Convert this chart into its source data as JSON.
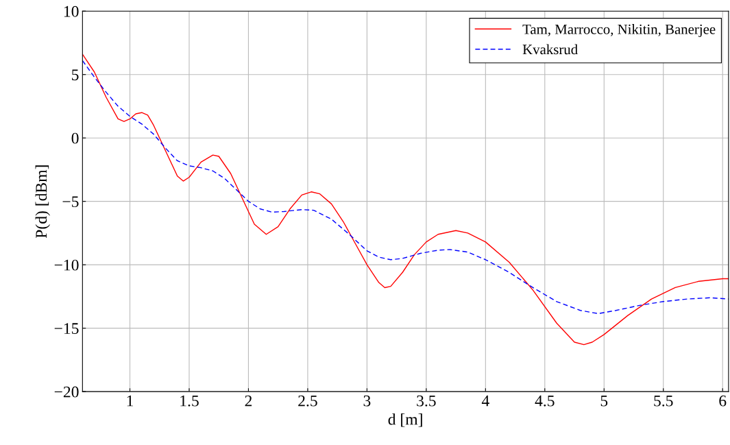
{
  "chart_data": {
    "type": "line",
    "xlabel": "d [m]",
    "ylabel": "P(d) [dBm]",
    "xlim": [
      0.6,
      6.05
    ],
    "xticks": [
      1,
      1.5,
      2,
      2.5,
      3,
      3.5,
      4,
      4.5,
      5,
      5.5,
      6
    ],
    "ylim": [
      -20,
      10
    ],
    "yticks": [
      {
        "value": -20,
        "label": "−20"
      },
      {
        "value": -15,
        "label": "−15"
      },
      {
        "value": -10,
        "label": "−10"
      },
      {
        "value": -5,
        "label": "−5"
      },
      0,
      5,
      10
    ],
    "grid": true,
    "legend": "top right",
    "marker": "none",
    "series": [
      {
        "name": "Tam, Marrocco, Nikitin, Banerjee",
        "color": "#ff0000",
        "line_style": "solid",
        "x": [
          0.6,
          0.7,
          0.8,
          0.9,
          0.95,
          1.0,
          1.05,
          1.1,
          1.15,
          1.2,
          1.3,
          1.4,
          1.45,
          1.5,
          1.6,
          1.7,
          1.75,
          1.85,
          1.95,
          2.05,
          2.15,
          2.25,
          2.35,
          2.45,
          2.53,
          2.6,
          2.7,
          2.8,
          2.9,
          3.0,
          3.1,
          3.15,
          3.2,
          3.3,
          3.4,
          3.5,
          3.6,
          3.75,
          3.85,
          4.0,
          4.2,
          4.4,
          4.6,
          4.75,
          4.83,
          4.9,
          5.0,
          5.2,
          5.4,
          5.6,
          5.8,
          6.0,
          6.05
        ],
        "values": [
          6.6,
          5.2,
          3.2,
          1.5,
          1.3,
          1.5,
          1.9,
          2.0,
          1.8,
          1.0,
          -1.0,
          -3.0,
          -3.4,
          -3.1,
          -1.9,
          -1.35,
          -1.45,
          -2.8,
          -4.8,
          -6.8,
          -7.6,
          -7.0,
          -5.6,
          -4.5,
          -4.25,
          -4.4,
          -5.2,
          -6.6,
          -8.3,
          -10.0,
          -11.4,
          -11.8,
          -11.7,
          -10.6,
          -9.2,
          -8.2,
          -7.6,
          -7.3,
          -7.5,
          -8.2,
          -9.8,
          -12.0,
          -14.6,
          -16.1,
          -16.3,
          -16.1,
          -15.5,
          -14.0,
          -12.7,
          -11.8,
          -11.3,
          -11.1,
          -11.1
        ]
      },
      {
        "name": "Kvaksrud",
        "color": "#0000ff",
        "line_style": "dashed",
        "x": [
          0.6,
          0.7,
          0.8,
          0.9,
          1.0,
          1.1,
          1.2,
          1.3,
          1.4,
          1.5,
          1.6,
          1.7,
          1.8,
          1.9,
          2.0,
          2.1,
          2.2,
          2.3,
          2.45,
          2.55,
          2.7,
          2.85,
          3.0,
          3.1,
          3.2,
          3.3,
          3.45,
          3.6,
          3.7,
          3.85,
          4.0,
          4.2,
          4.4,
          4.6,
          4.8,
          4.95,
          5.1,
          5.3,
          5.5,
          5.7,
          5.9,
          6.05
        ],
        "values": [
          6.1,
          4.8,
          3.6,
          2.5,
          1.7,
          1.1,
          0.3,
          -0.8,
          -1.8,
          -2.2,
          -2.35,
          -2.6,
          -3.2,
          -4.1,
          -5.0,
          -5.6,
          -5.85,
          -5.8,
          -5.65,
          -5.7,
          -6.4,
          -7.6,
          -8.9,
          -9.4,
          -9.6,
          -9.5,
          -9.1,
          -8.85,
          -8.8,
          -9.0,
          -9.6,
          -10.6,
          -11.8,
          -12.9,
          -13.6,
          -13.85,
          -13.6,
          -13.2,
          -12.9,
          -12.7,
          -12.6,
          -12.7
        ]
      }
    ]
  }
}
